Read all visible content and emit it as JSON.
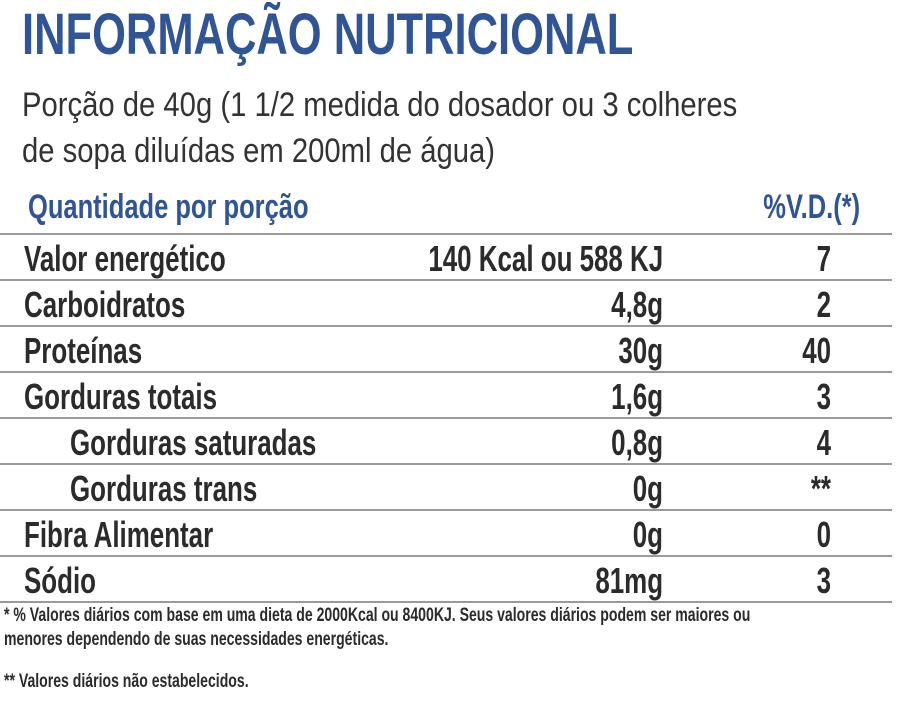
{
  "header": {
    "title": "INFORMAÇÃO NUTRICIONAL",
    "portion": [
      "Porção de 40g (1 1/2 medida do dosador ou 3 colheres",
      "de sopa diluídas em 200ml de água)"
    ]
  },
  "table": {
    "columns": [
      "Quantidade por porção",
      "%V.D.(*)"
    ],
    "rows": [
      [
        "Valor energético",
        "140 Kcal ou 588 KJ",
        "7"
      ],
      [
        "Carboidratos",
        "4,8g",
        "2"
      ],
      [
        "Proteínas",
        "30g",
        "40"
      ],
      [
        "Gorduras totais",
        "1,6g",
        "3"
      ],
      [
        "Gorduras saturadas",
        "0,8g",
        "4"
      ],
      [
        "Gorduras trans",
        "0g",
        "**"
      ],
      [
        "Fibra Alimentar",
        "0g",
        "0"
      ],
      [
        "Sódio",
        "81mg",
        "3"
      ]
    ]
  },
  "footnotes": [
    "* % Valores diários com base em uma dieta de 2000Kcal ou 8400KJ. Seus valores diários podem ser maiores ou",
    "menores dependendo de suas necessidades energéticas.",
    "** Valores diários não estabelecidos."
  ]
}
